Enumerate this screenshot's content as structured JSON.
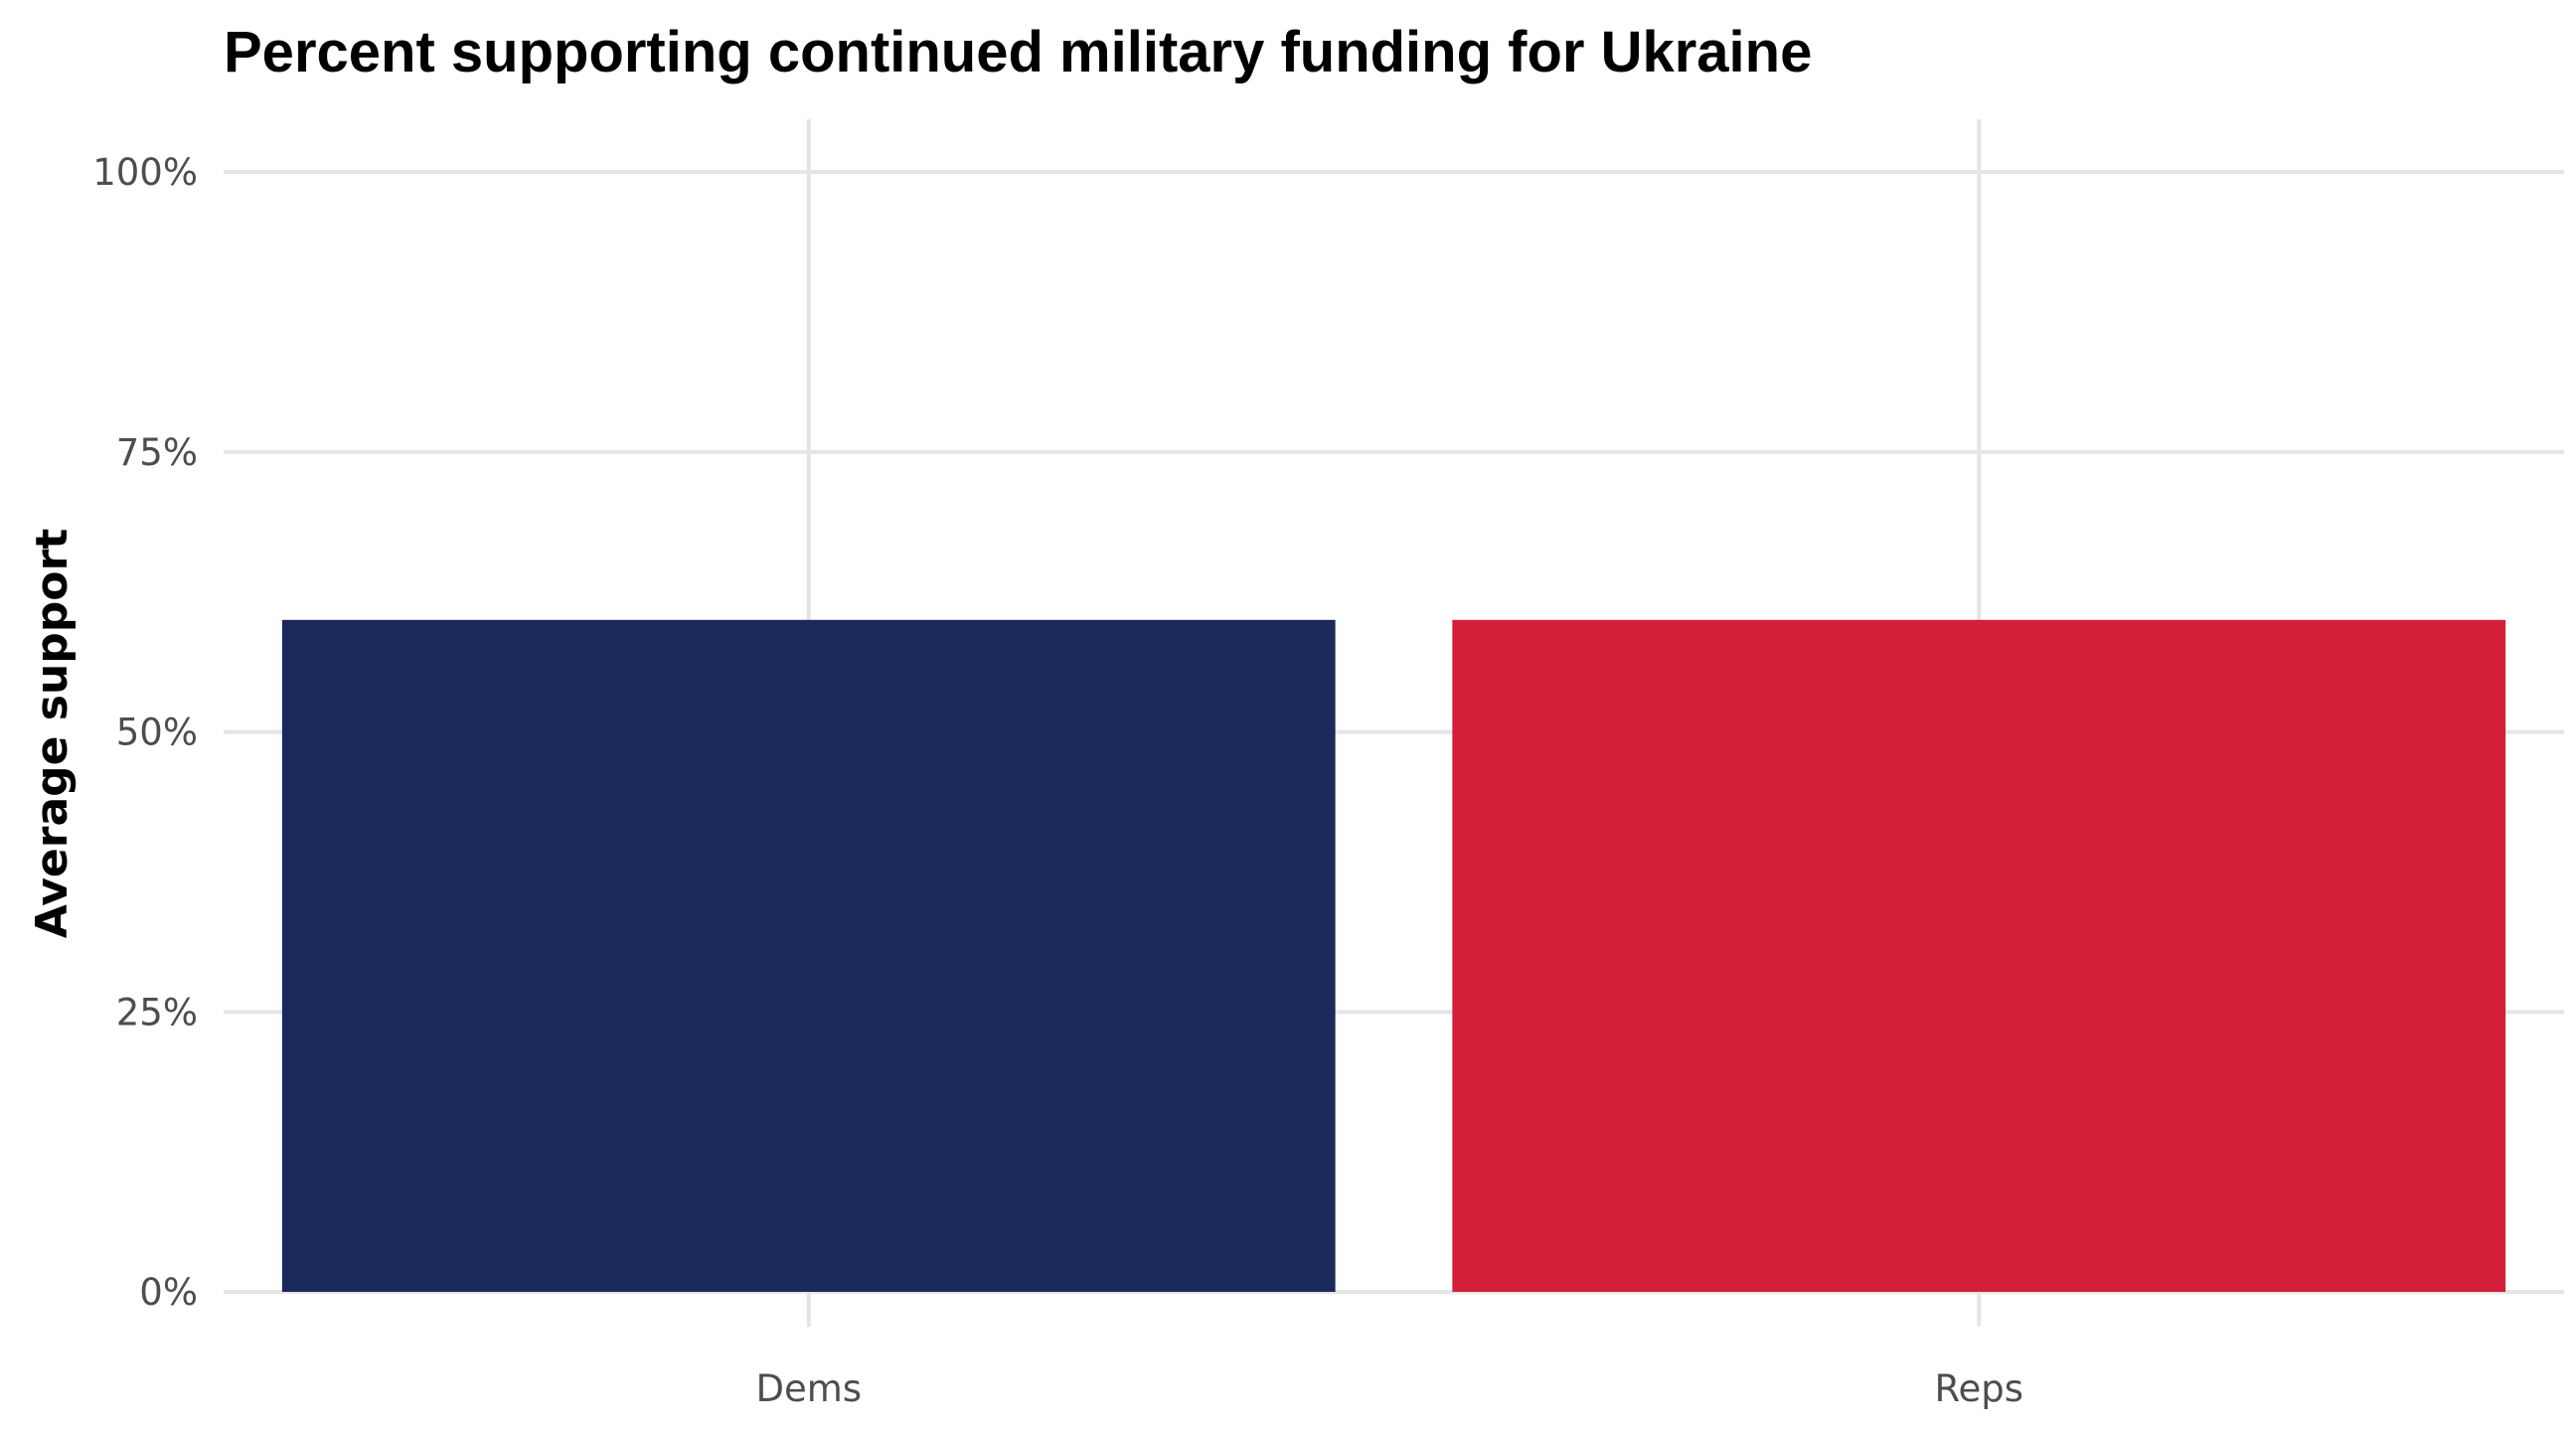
{
  "chart_data": {
    "type": "bar",
    "title": "Percent supporting continued military funding for Ukraine",
    "xlabel": "",
    "ylabel": "Average support",
    "categories": [
      "Dems",
      "Reps"
    ],
    "values": [
      60,
      60
    ],
    "value_unit": "percent",
    "ylim": [
      0,
      100
    ],
    "y_ticks": [
      0,
      25,
      50,
      75,
      100
    ],
    "y_tick_labels": [
      "0%",
      "25%",
      "50%",
      "75%",
      "100%"
    ],
    "bar_colors": [
      "#1b285c",
      "#d21f3a"
    ],
    "grid": true,
    "legend": "none"
  }
}
